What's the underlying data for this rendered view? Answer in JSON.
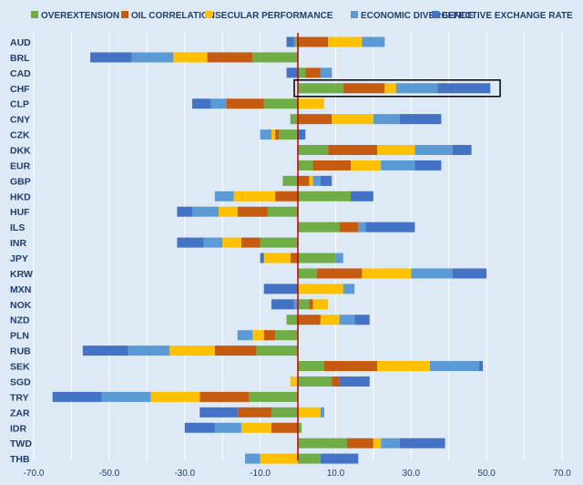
{
  "chart_data": {
    "type": "bar",
    "orientation": "horizontal",
    "stacked": "diverging",
    "title": "",
    "xlabel": "",
    "ylabel": "",
    "xlim": [
      -70,
      70
    ],
    "x_ticks": [
      "-70.0",
      "-50.0",
      "-30.0",
      "-10.0",
      "10.0",
      "30.0",
      "50.0",
      "70.0"
    ],
    "grid": "vertical",
    "legend": "top",
    "categories": [
      "AUD",
      "BRL",
      "CAD",
      "CHF",
      "CLP",
      "CNY",
      "CZK",
      "DKK",
      "EUR",
      "GBP",
      "HKD",
      "HUF",
      "ILS",
      "INR",
      "JPY",
      "KRW",
      "MXN",
      "NOK",
      "NZD",
      "PLN",
      "RUB",
      "SEK",
      "SGD",
      "TRY",
      "ZAR",
      "IDR",
      "TWD",
      "THB"
    ],
    "series": [
      {
        "name": "OVEREXTENSION",
        "color": "#70ad47",
        "values": [
          -1,
          -12,
          2,
          12,
          -9,
          -2,
          -5,
          8,
          4,
          -4,
          14,
          -8,
          11,
          -10,
          10,
          5,
          0,
          3,
          -3,
          -6,
          -11,
          7,
          9,
          -13,
          -7,
          1,
          13,
          6
        ]
      },
      {
        "name": "OIL CORRELATION",
        "color": "#c55a11",
        "values": [
          8,
          -12,
          4,
          11,
          -10,
          9,
          -1,
          13,
          10,
          3,
          -6,
          -8,
          5,
          -5,
          -2,
          12,
          0,
          1,
          6,
          -3,
          -11,
          14,
          2,
          -13,
          -9,
          -7,
          7,
          0
        ]
      },
      {
        "name": "SECULAR PERFORMANCE",
        "color": "#ffc000",
        "values": [
          9,
          -9,
          0,
          3,
          7,
          11,
          -1,
          10,
          8,
          1,
          -11,
          -5,
          0,
          -5,
          -7,
          13,
          12,
          4,
          5,
          -3,
          -12,
          14,
          -2,
          -13,
          6,
          -8,
          2,
          -10
        ]
      },
      {
        "name": "ECONOMIC DIVERGENCE",
        "color": "#5b9bd5",
        "values": [
          6,
          -11,
          3,
          11,
          -4,
          7,
          -3,
          10,
          9,
          2,
          -5,
          -7,
          2,
          -5,
          2,
          11,
          3,
          -1,
          4,
          -4,
          -11,
          13,
          0,
          -13,
          1,
          -7,
          5,
          -4
        ]
      },
      {
        "name": "EFFECTIVE EXCHANGE RATE",
        "color": "#4472c4",
        "values": [
          -2,
          -11,
          -3,
          14,
          -5,
          11,
          2,
          5,
          7,
          3,
          6,
          -4,
          13,
          -7,
          -1,
          9,
          -9,
          -6,
          4,
          0,
          -12,
          1,
          8,
          -13,
          -10,
          -8,
          12,
          10
        ]
      }
    ]
  }
}
